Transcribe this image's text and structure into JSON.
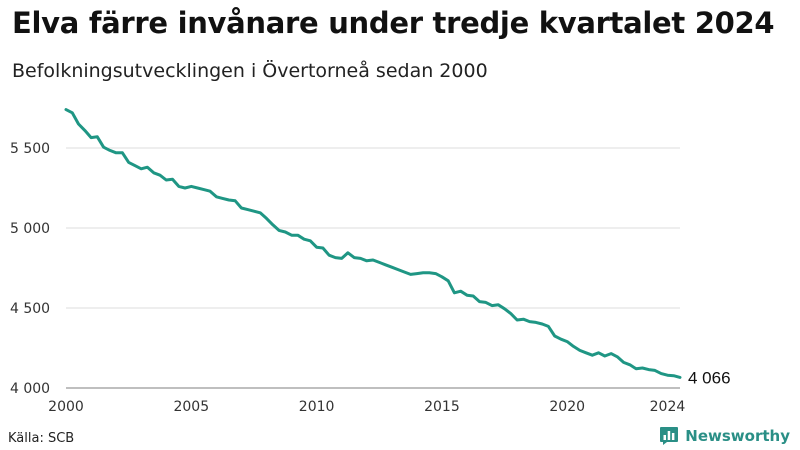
{
  "header": {
    "title": "Elva färre invånare under tredje kvartalet 2024",
    "subtitle": "Befolkningsutvecklingen i Övertorneå sedan 2000"
  },
  "footer": {
    "source": "Källa: SCB",
    "brand": "Newsworthy"
  },
  "colors": {
    "line": "#1f9684",
    "grid": "#dddddd",
    "brand": "#2a8f86"
  },
  "icons": {
    "brand_logo": "bar-chart-speech-icon"
  },
  "chart_data": {
    "type": "line",
    "title": "Elva färre invånare under tredje kvartalet 2024",
    "subtitle": "Befolkningsutvecklingen i Övertorneå sedan 2000",
    "xlabel": "",
    "ylabel": "",
    "xlim": [
      2000,
      2024.5
    ],
    "ylim": [
      4000,
      5800
    ],
    "x_ticks": [
      2000,
      2005,
      2010,
      2015,
      2020,
      2024
    ],
    "x_tick_labels": [
      "2000",
      "2005",
      "2010",
      "2015",
      "2020",
      "2024"
    ],
    "y_ticks": [
      4000,
      4500,
      5000,
      5500
    ],
    "y_tick_labels": [
      "4 000",
      "4 500",
      "5 000",
      "5 500"
    ],
    "grid": "horizontal",
    "end_label": "4 066",
    "series": [
      {
        "x": [
          2000,
          2000.25,
          2000.5,
          2000.75,
          2001,
          2001.25,
          2001.5,
          2001.75,
          2002,
          2002.25,
          2002.5,
          2002.75,
          2003,
          2003.25,
          2003.5,
          2003.75,
          2004,
          2004.25,
          2004.5,
          2004.75,
          2005,
          2005.25,
          2005.5,
          2005.75,
          2006,
          2006.25,
          2006.5,
          2006.75,
          2007,
          2007.25,
          2007.5,
          2007.75,
          2008,
          2008.25,
          2008.5,
          2008.75,
          2009,
          2009.25,
          2009.5,
          2009.75,
          2010,
          2010.25,
          2010.5,
          2010.75,
          2011,
          2011.25,
          2011.5,
          2011.75,
          2012,
          2012.25,
          2012.5,
          2012.75,
          2013,
          2013.25,
          2013.5,
          2013.75,
          2014,
          2014.25,
          2014.5,
          2014.75,
          2015,
          2015.25,
          2015.5,
          2015.75,
          2016,
          2016.25,
          2016.5,
          2016.75,
          2017,
          2017.25,
          2017.5,
          2017.75,
          2018,
          2018.25,
          2018.5,
          2018.75,
          2019,
          2019.25,
          2019.5,
          2019.75,
          2020,
          2020.25,
          2020.5,
          2020.75,
          2021,
          2021.25,
          2021.5,
          2021.75,
          2022,
          2022.25,
          2022.5,
          2022.75,
          2023,
          2023.25,
          2023.5,
          2023.75,
          2024,
          2024.25,
          2024.5
        ],
        "values": [
          5740,
          5720,
          5650,
          5610,
          5565,
          5570,
          5505,
          5485,
          5470,
          5470,
          5410,
          5390,
          5370,
          5380,
          5345,
          5330,
          5300,
          5305,
          5260,
          5250,
          5260,
          5250,
          5240,
          5230,
          5195,
          5185,
          5175,
          5170,
          5125,
          5115,
          5105,
          5095,
          5060,
          5020,
          4985,
          4975,
          4955,
          4955,
          4930,
          4920,
          4880,
          4875,
          4830,
          4815,
          4810,
          4845,
          4815,
          4810,
          4795,
          4800,
          4785,
          4770,
          4755,
          4740,
          4725,
          4710,
          4715,
          4720,
          4720,
          4715,
          4695,
          4670,
          4595,
          4605,
          4580,
          4575,
          4540,
          4535,
          4515,
          4520,
          4495,
          4465,
          4425,
          4430,
          4415,
          4410,
          4400,
          4385,
          4325,
          4305,
          4290,
          4260,
          4235,
          4220,
          4205,
          4220,
          4200,
          4215,
          4195,
          4160,
          4145,
          4120,
          4125,
          4115,
          4110,
          4090,
          4080,
          4077,
          4066
        ]
      }
    ]
  }
}
